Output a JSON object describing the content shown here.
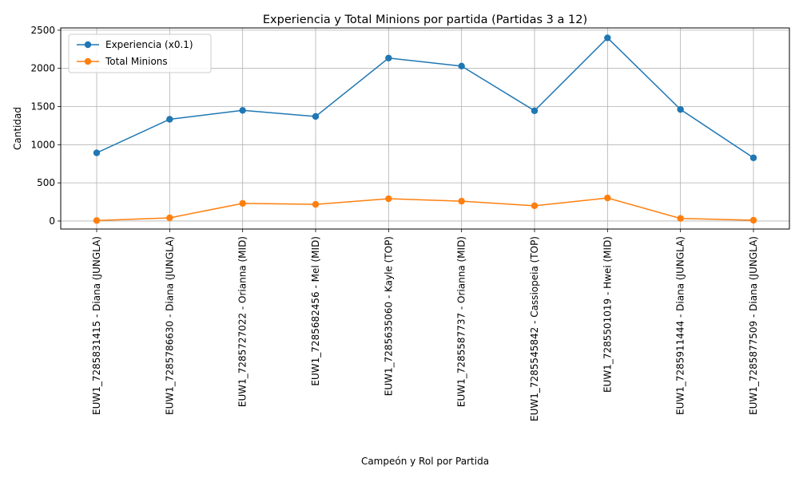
{
  "chart_data": {
    "type": "line",
    "title": "Experiencia y Total Minions por partida (Partidas 3 a 12)",
    "xlabel": "Campeón y Rol por Partida",
    "ylabel": "Cantidad",
    "ylim": [
      -105,
      2530
    ],
    "yticks": [
      0,
      500,
      1000,
      1500,
      2000,
      2500
    ],
    "grid": true,
    "legend_position": "upper-left",
    "categories": [
      "EUW1_7285831415 - Diana (JUNGLA)",
      "EUW1_7285786630 - Diana (JUNGLA)",
      "EUW1_7285727022 - Orianna (MID)",
      "EUW1_7285682456 - Mel (MID)",
      "EUW1_7285635060 - Kayle (TOP)",
      "EUW1_7285587737 - Orianna (MID)",
      "EUW1_7285545842 - Cassiopeia (TOP)",
      "EUW1_7285501019 - Hwei (MID)",
      "EUW1_7285911444 - Diana (JUNGLA)",
      "EUW1_7285877509 - Diana (JUNGLA)"
    ],
    "series": [
      {
        "name": "Experiencia (x0.1)",
        "color": "#1f77b4",
        "values": [
          893,
          1333,
          1450,
          1370,
          2135,
          2030,
          1445,
          2400,
          1462,
          828
        ]
      },
      {
        "name": "Total Minions",
        "color": "#ff7f0e",
        "values": [
          7,
          42,
          231,
          218,
          292,
          260,
          200,
          302,
          34,
          10
        ]
      }
    ]
  }
}
